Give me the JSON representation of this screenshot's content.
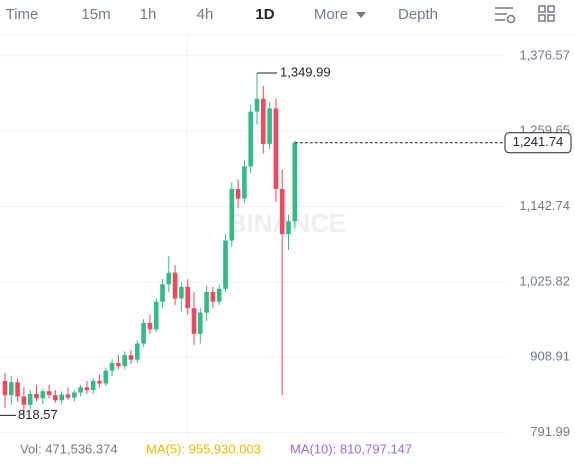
{
  "toolbar": {
    "tabs": [
      "Time",
      "15m",
      "1h",
      "4h",
      "1D",
      "More",
      "Depth"
    ],
    "active": "1D"
  },
  "chart_data": {
    "type": "candlestick",
    "watermark": "BINANCE",
    "up_color": "#2ebd85",
    "down_color": "#f6465d",
    "grid": true,
    "ylim": [
      785,
      1409
    ],
    "yticks": [
      {
        "value": 1376.57,
        "label": "1,376.57"
      },
      {
        "value": 1259.65,
        "label": "1,259.65"
      },
      {
        "value": 1142.74,
        "label": "1,142.74"
      },
      {
        "value": 1025.82,
        "label": "1,025.82"
      },
      908.91,
      791.99
    ],
    "open": [
      872,
      850,
      870,
      848,
      835,
      852,
      845,
      856,
      850,
      842,
      851,
      846,
      854,
      862,
      858,
      872,
      868,
      888,
      900,
      895,
      912,
      905,
      930,
      962,
      952,
      995,
      1022,
      1040,
      1000,
      1018,
      985,
      945,
      978,
      1010,
      995,
      1015,
      1090,
      1170,
      1155,
      1205,
      1290,
      1310,
      1240,
      1295,
      1170,
      1100,
      1120
    ],
    "high": [
      885,
      880,
      876,
      862,
      858,
      866,
      860,
      866,
      858,
      856,
      862,
      858,
      866,
      872,
      876,
      882,
      892,
      906,
      912,
      918,
      920,
      935,
      968,
      975,
      1000,
      1030,
      1066,
      1052,
      1025,
      1030,
      1010,
      985,
      1020,
      1018,
      1022,
      1100,
      1180,
      1185,
      1215,
      1300,
      1349.99,
      1330,
      1305,
      1310,
      1200,
      1130,
      1245
    ],
    "low": [
      830,
      835,
      840,
      818.57,
      828,
      840,
      836,
      845,
      838,
      836,
      843,
      840,
      848,
      852,
      852,
      862,
      864,
      880,
      890,
      890,
      898,
      900,
      925,
      945,
      948,
      985,
      1010,
      990,
      980,
      975,
      928,
      930,
      965,
      985,
      990,
      1010,
      1080,
      1140,
      1148,
      1195,
      1270,
      1225,
      1232,
      1150,
      850,
      1075,
      1110
    ],
    "close": [
      850,
      870,
      848,
      835,
      852,
      845,
      856,
      850,
      842,
      851,
      846,
      854,
      862,
      858,
      872,
      868,
      888,
      900,
      895,
      912,
      905,
      930,
      962,
      952,
      995,
      1022,
      1040,
      1000,
      1018,
      985,
      945,
      978,
      1010,
      995,
      1015,
      1090,
      1170,
      1155,
      1205,
      1290,
      1310,
      1240,
      1295,
      1170,
      1100,
      1120,
      1241.74
    ],
    "high_label": {
      "value": 1349.99,
      "label": "1,349.99"
    },
    "low_label": {
      "value": 818.57,
      "label": "818.57"
    },
    "last_price": {
      "value": 1241.74,
      "label": "1,241.74"
    },
    "footer": {
      "vol": "Vol: 471,536.374",
      "ma5": "MA(5): 955,930.003",
      "ma10": "MA(10): 810,797.147"
    }
  }
}
